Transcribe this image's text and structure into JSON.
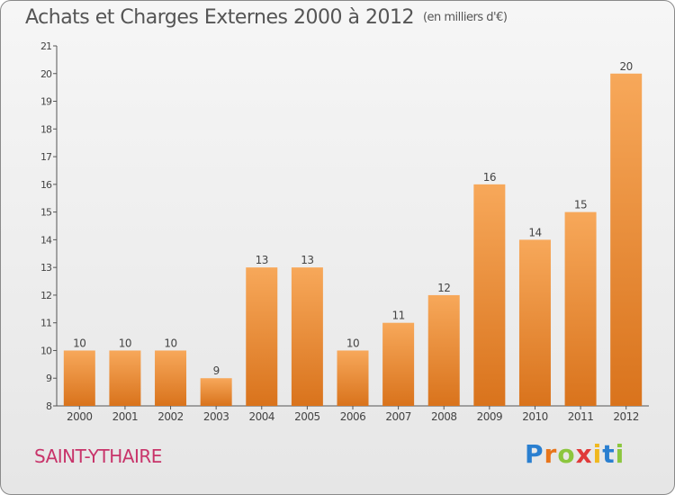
{
  "header": {
    "title": "Achats et Charges Externes 2000 à 2012",
    "unit": "(en milliers d'€)"
  },
  "footer": {
    "commune": "SAINT-YTHAIRE",
    "logo_text": "Proxiti"
  },
  "colors": {
    "bar_top": "#f7a85a",
    "bar_bottom": "#d9731c",
    "axis": "#555555",
    "commune": "#c8346a"
  },
  "chart_data": {
    "type": "bar",
    "title": "Achats et Charges Externes 2000 à 2012",
    "subtitle": "(en milliers d'€)",
    "xlabel": "",
    "ylabel": "",
    "categories": [
      "2000",
      "2001",
      "2002",
      "2003",
      "2004",
      "2005",
      "2006",
      "2007",
      "2008",
      "2009",
      "2010",
      "2011",
      "2012"
    ],
    "values": [
      10,
      10,
      10,
      9,
      13,
      13,
      10,
      11,
      12,
      16,
      14,
      15,
      20
    ],
    "ylim": [
      8,
      21
    ],
    "yticks": [
      8,
      9,
      10,
      11,
      12,
      13,
      14,
      15,
      16,
      17,
      18,
      19,
      20,
      21
    ],
    "grid": false,
    "legend": "none"
  }
}
